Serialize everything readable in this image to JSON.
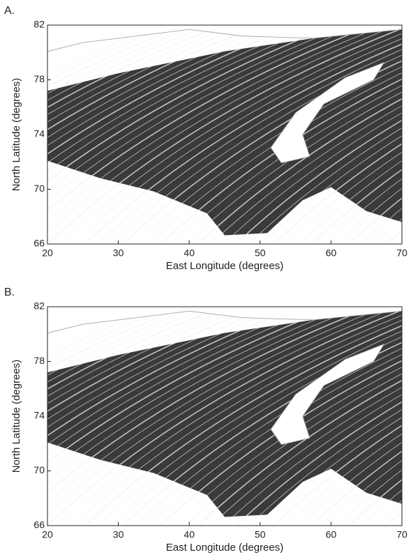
{
  "chart_data": [
    {
      "type": "map",
      "panel": "A.",
      "xlabel": "East Longitude (degrees)",
      "ylabel": "North Latitude (degrees)",
      "xlim": [
        20,
        70
      ],
      "ylim": [
        66,
        82
      ],
      "xticks": [
        20,
        30,
        40,
        50,
        60,
        70
      ],
      "yticks": [
        66,
        70,
        74,
        78,
        82
      ]
    },
    {
      "type": "map",
      "panel": "B.",
      "xlabel": "East Longitude (degrees)",
      "ylabel": "North Latitude (degrees)",
      "xlim": [
        20,
        70
      ],
      "ylim": [
        66,
        82
      ],
      "xticks": [
        20,
        30,
        40,
        50,
        60,
        70
      ],
      "yticks": [
        66,
        70,
        74,
        78,
        82
      ]
    }
  ]
}
